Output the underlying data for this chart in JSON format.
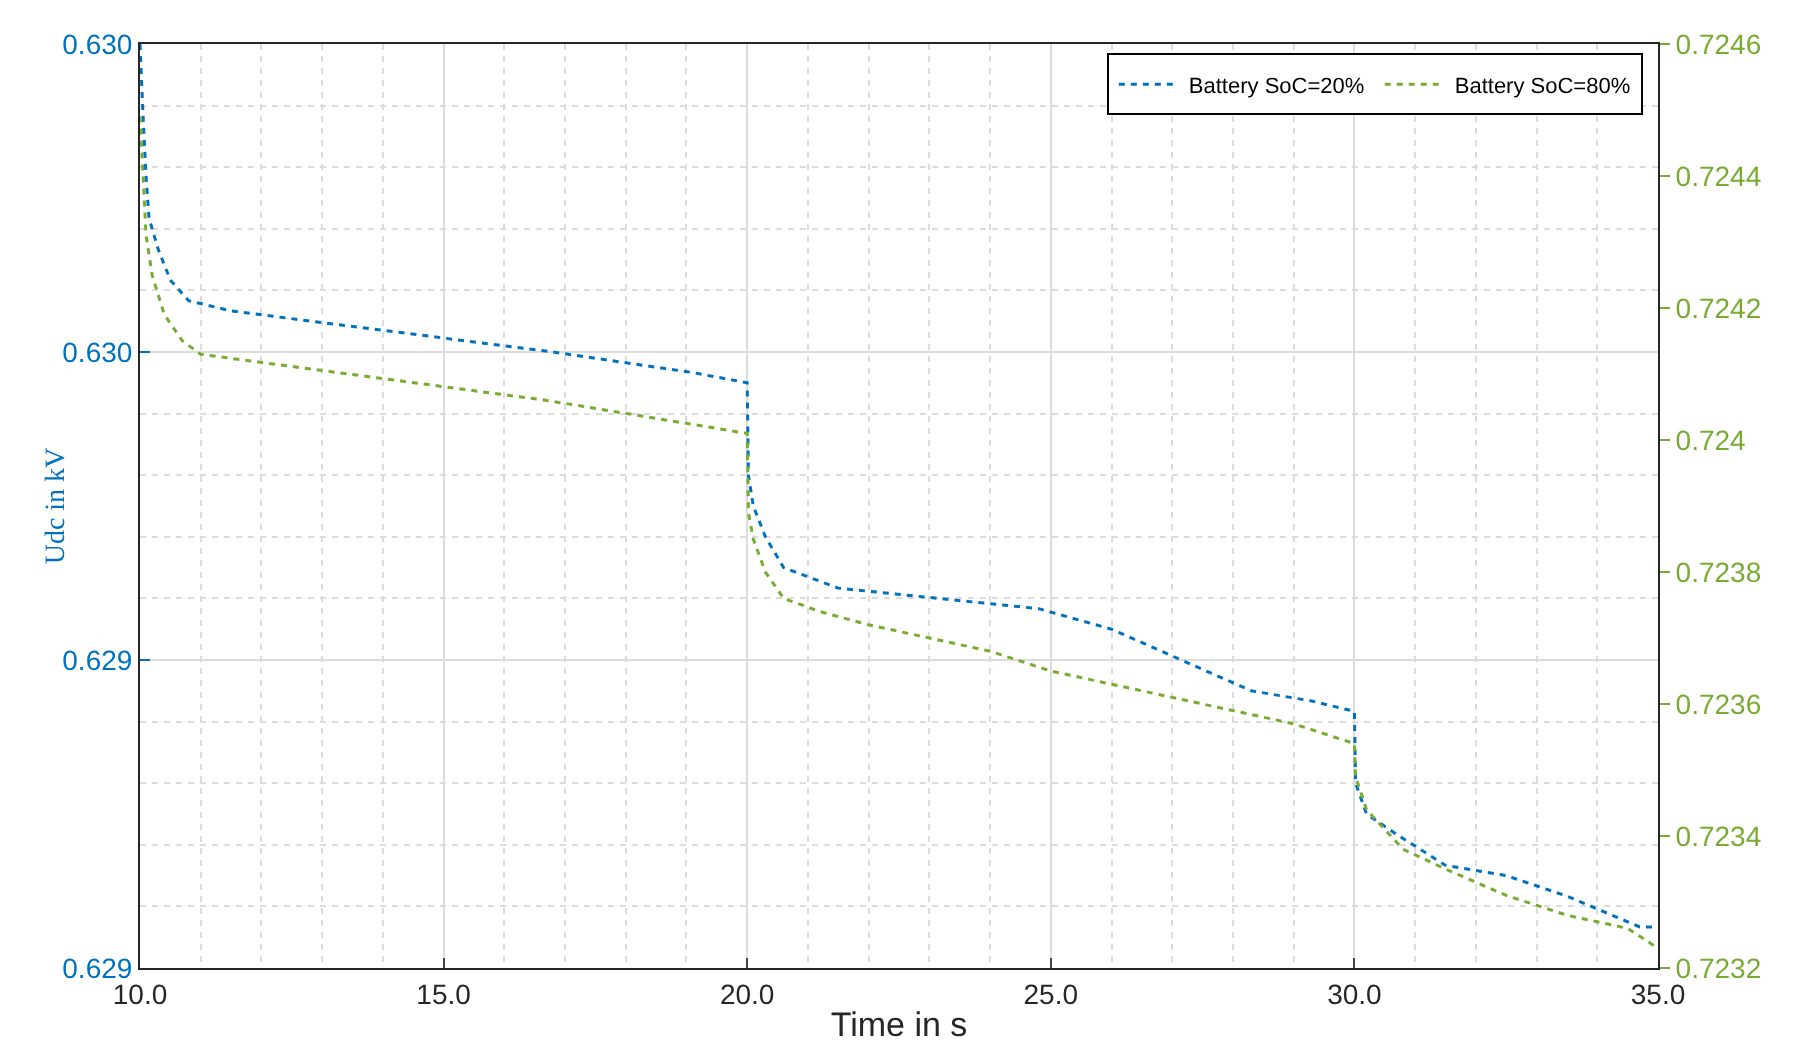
{
  "chart_data": {
    "type": "line",
    "xlabel": "Time in s",
    "ylabel": "Udc in kV",
    "xlim": [
      10,
      35
    ],
    "xticks": [
      {
        "value": 10,
        "label": "10.0"
      },
      {
        "value": 15,
        "label": "15.0"
      },
      {
        "value": 20,
        "label": "20.0"
      },
      {
        "value": 25,
        "label": "25.0"
      },
      {
        "value": 30,
        "label": "30.0"
      },
      {
        "value": 35,
        "label": "35.0"
      }
    ],
    "ylim": [
      0.62915,
      0.63005
    ],
    "yticks": [
      {
        "value": 0.62915,
        "label": "0.629"
      },
      {
        "value": 0.62945,
        "label": "0.629"
      },
      {
        "value": 0.62975,
        "label": "0.630"
      },
      {
        "value": 0.63005,
        "label": "0.630"
      }
    ],
    "y2lim": [
      0.7232,
      0.7246
    ],
    "y2ticks": [
      0.7232,
      0.7234,
      0.7236,
      0.7238,
      0.724,
      0.7242,
      0.7244,
      0.7246
    ],
    "grid": true,
    "legend": "top right",
    "line_style": "dotted",
    "marker": "none",
    "series": [
      {
        "name": "Battery SoC=20%",
        "color": "#0072bd",
        "x": [
          10.0,
          10.05,
          10.1,
          10.15,
          10.3,
          10.5,
          10.8,
          11.5,
          16.8,
          19.1,
          20.0,
          20.02,
          20.1,
          20.3,
          20.6,
          21.5,
          24.8,
          26.0,
          28.3,
          29.3,
          30.0,
          30.02,
          30.2,
          30.7,
          31.5,
          32.5,
          33.5,
          34.7,
          35.0
        ],
        "values": [
          0.63005,
          0.62998,
          0.62992,
          0.62988,
          0.62985,
          0.62982,
          0.6298,
          0.62979,
          0.62975,
          0.62973,
          0.62972,
          0.62963,
          0.6296,
          0.62957,
          0.62954,
          0.62952,
          0.6295,
          0.62948,
          0.62942,
          0.62941,
          0.6294,
          0.62933,
          0.6293,
          0.62928,
          0.62925,
          0.62924,
          0.62922,
          0.62919,
          0.62919
        ]
      },
      {
        "name": "Battery SoC=80%",
        "color": "#77ac30",
        "axis": "y2",
        "x": [
          10.0,
          10.05,
          10.1,
          10.2,
          10.4,
          10.7,
          11.0,
          11.8,
          16.7,
          20.0,
          20.02,
          20.1,
          20.3,
          20.6,
          21.2,
          22.0,
          23.0,
          24.0,
          25.0,
          26.0,
          27.0,
          28.0,
          29.0,
          30.0,
          30.02,
          30.2,
          30.8,
          31.5,
          32.5,
          33.5,
          34.5,
          35.0
        ],
        "values": [
          0.72449,
          0.7244,
          0.72431,
          0.72425,
          0.72419,
          0.72415,
          0.72413,
          0.72412,
          0.72406,
          0.72401,
          0.72389,
          0.72385,
          0.7238,
          0.72376,
          0.72374,
          0.72372,
          0.7237,
          0.72368,
          0.72365,
          0.72363,
          0.72361,
          0.72359,
          0.72357,
          0.72354,
          0.72349,
          0.72344,
          0.72338,
          0.72335,
          0.72331,
          0.72328,
          0.72326,
          0.72323
        ]
      }
    ]
  }
}
